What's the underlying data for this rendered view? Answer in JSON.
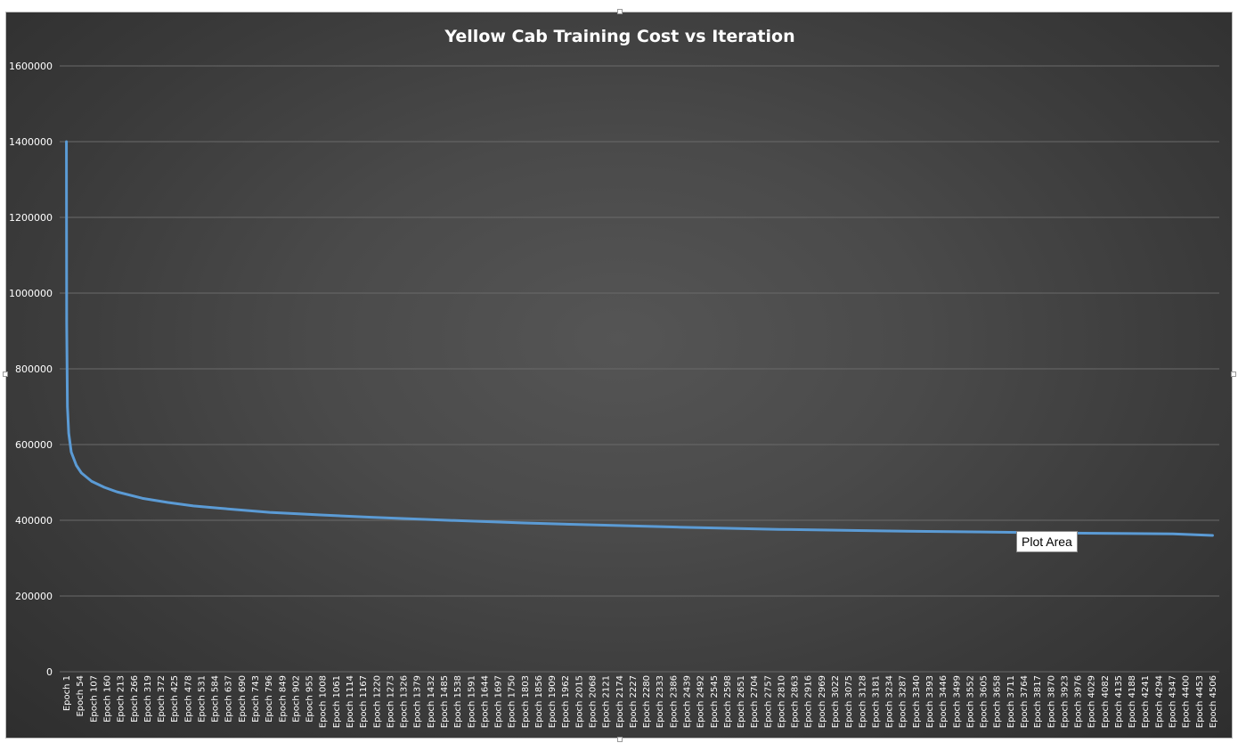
{
  "chart_data": {
    "type": "line",
    "title": "Yellow Cab Training Cost vs Iteration",
    "xlabel": "",
    "ylabel": "",
    "ylim": [
      0,
      1600000
    ],
    "yticks": [
      0,
      200000,
      400000,
      600000,
      800000,
      1000000,
      1200000,
      1400000,
      1600000
    ],
    "ytick_labels": [
      "0",
      "200000",
      "400000",
      "600000",
      "800000",
      "1000000",
      "1200000",
      "1400000",
      "1600000"
    ],
    "grid": true,
    "legend": "none",
    "x_tick_labels": [
      "Epoch 1",
      "Epoch 54",
      "Epoch 107",
      "Epoch 160",
      "Epoch 213",
      "Epoch 266",
      "Epoch 319",
      "Epoch 372",
      "Epoch 425",
      "Epoch 478",
      "Epoch 531",
      "Epoch 584",
      "Epoch 637",
      "Epoch 690",
      "Epoch 743",
      "Epoch 796",
      "Epoch 849",
      "Epoch 902",
      "Epoch 955",
      "Epoch 1008",
      "Epoch 1061",
      "Epoch 1114",
      "Epoch 1167",
      "Epoch 1220",
      "Epoch 1273",
      "Epoch 1326",
      "Epoch 1379",
      "Epoch 1432",
      "Epoch 1485",
      "Epoch 1538",
      "Epoch 1591",
      "Epoch 1644",
      "Epoch 1697",
      "Epoch 1750",
      "Epoch 1803",
      "Epoch 1856",
      "Epoch 1909",
      "Epoch 1962",
      "Epoch 2015",
      "Epoch 2068",
      "Epoch 2121",
      "Epoch 2174",
      "Epoch 2227",
      "Epoch 2280",
      "Epoch 2333",
      "Epoch 2386",
      "Epoch 2439",
      "Epoch 2492",
      "Epoch 2545",
      "Epoch 2598",
      "Epoch 2651",
      "Epoch 2704",
      "Epoch 2757",
      "Epoch 2810",
      "Epoch 2863",
      "Epoch 2916",
      "Epoch 2969",
      "Epoch 3022",
      "Epoch 3075",
      "Epoch 3128",
      "Epoch 3181",
      "Epoch 3234",
      "Epoch 3287",
      "Epoch 3340",
      "Epoch 3393",
      "Epoch 3446",
      "Epoch 3499",
      "Epoch 3552",
      "Epoch 3605",
      "Epoch 3658",
      "Epoch 3711",
      "Epoch 3764",
      "Epoch 3817",
      "Epoch 3870",
      "Epoch 3923",
      "Epoch 3976",
      "Epoch 4029",
      "Epoch 4082",
      "Epoch 4135",
      "Epoch 4188",
      "Epoch 4241",
      "Epoch 4294",
      "Epoch 4347",
      "Epoch 4400",
      "Epoch 4453",
      "Epoch 4506"
    ],
    "x_range": [
      1,
      4506
    ],
    "series": [
      {
        "color": "#5b9bd5",
        "x": [
          1,
          2,
          5,
          10,
          20,
          40,
          60,
          100,
          150,
          200,
          300,
          400,
          500,
          600,
          800,
          1000,
          1200,
          1500,
          1800,
          2000,
          2400,
          2800,
          3200,
          3600,
          4000,
          4350,
          4506
        ],
        "y": [
          1400000,
          920000,
          700000,
          630000,
          580000,
          545000,
          525000,
          503000,
          487000,
          475000,
          458000,
          447000,
          438000,
          432000,
          421000,
          414000,
          408000,
          400000,
          393000,
          389000,
          382000,
          376000,
          372000,
          369000,
          366000,
          364000,
          360000
        ]
      }
    ]
  },
  "tooltip": {
    "label": "Plot Area"
  }
}
